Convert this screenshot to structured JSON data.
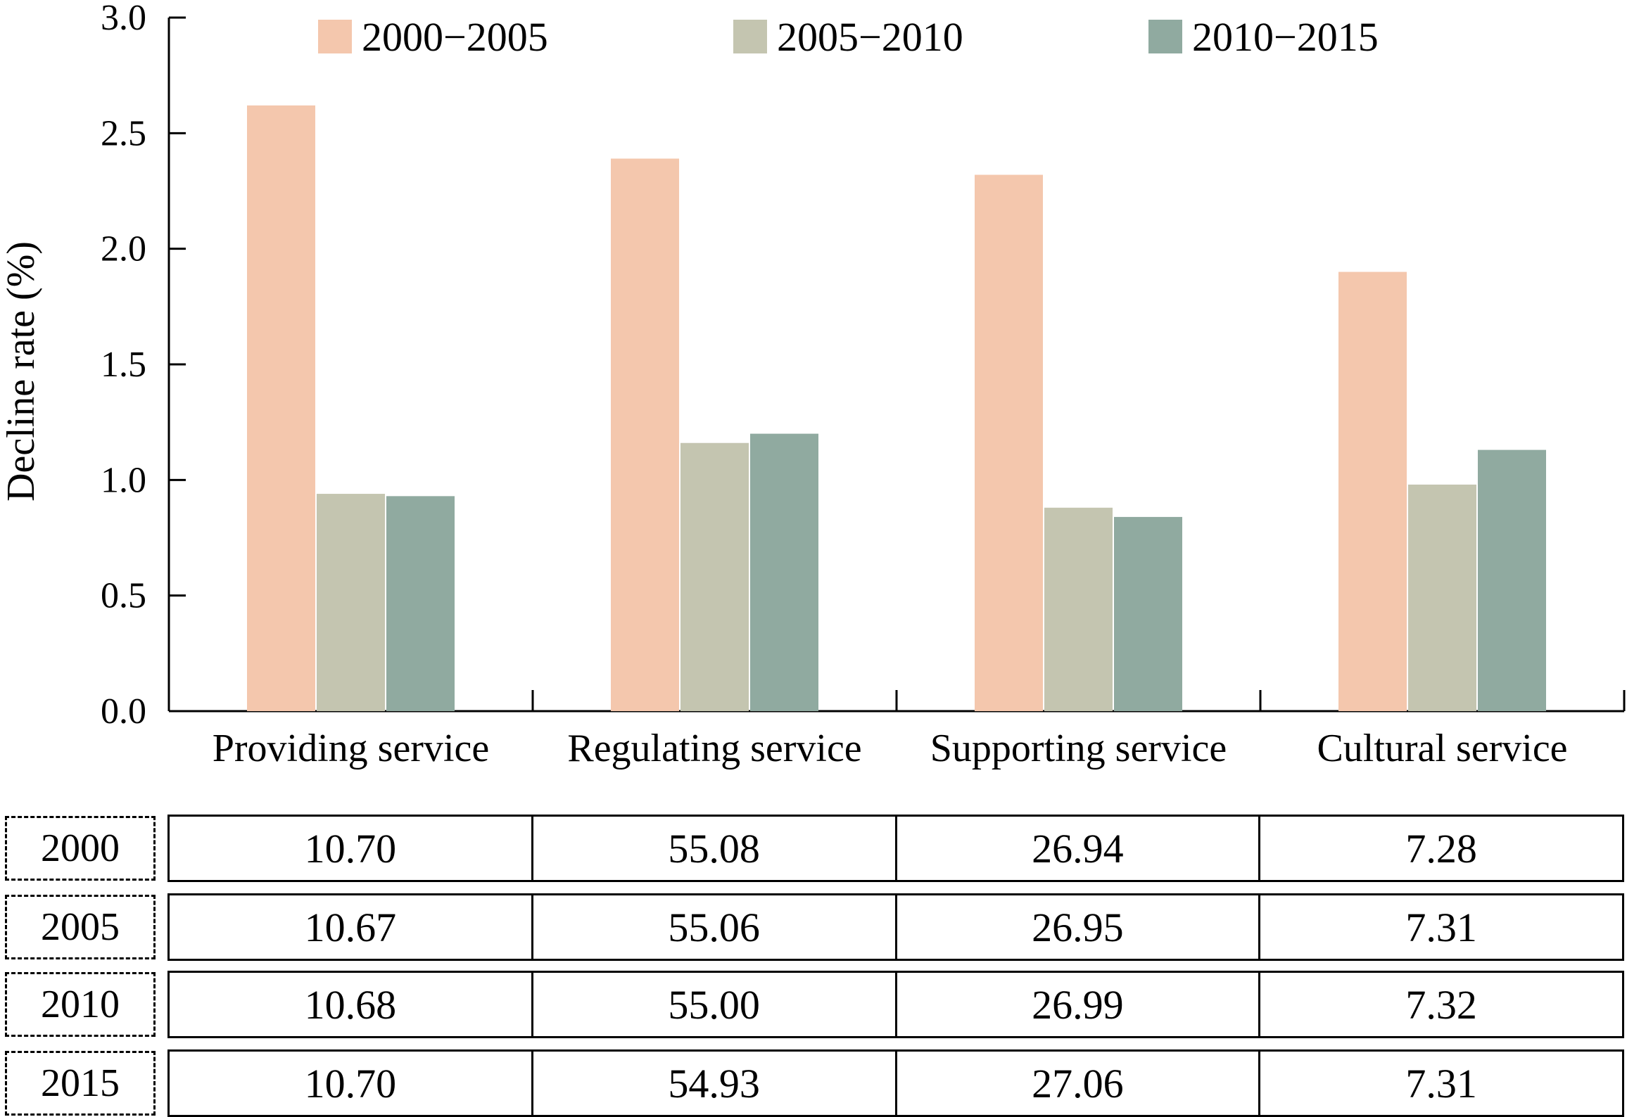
{
  "chart_data": {
    "type": "bar",
    "ylabel": "Decline rate (%)",
    "xlabel": "",
    "ylim": [
      0,
      3.0
    ],
    "yticks": [
      "0.0",
      "0.5",
      "1.0",
      "1.5",
      "2.0",
      "2.5",
      "3.0"
    ],
    "categories": [
      "Providing service",
      "Regulating service",
      "Supporting service",
      "Cultural service"
    ],
    "legend_position": "top",
    "series": [
      {
        "name": "2000−2005",
        "color": "#f4c7ad",
        "values": [
          2.62,
          2.39,
          2.32,
          1.9
        ]
      },
      {
        "name": "2005−2010",
        "color": "#c4c5b0",
        "values": [
          0.94,
          1.16,
          0.88,
          0.98
        ]
      },
      {
        "name": "2010−2015",
        "color": "#90aaa0",
        "values": [
          0.93,
          1.2,
          0.84,
          1.13
        ]
      }
    ]
  },
  "table": {
    "rows": [
      {
        "year": "2000",
        "values": [
          "10.70",
          "55.08",
          "26.94",
          "7.28"
        ]
      },
      {
        "year": "2005",
        "values": [
          "10.67",
          "55.06",
          "26.95",
          "7.31"
        ]
      },
      {
        "year": "2010",
        "values": [
          "10.68",
          "55.00",
          "26.99",
          "7.32"
        ]
      },
      {
        "year": "2015",
        "values": [
          "10.70",
          "54.93",
          "27.06",
          "7.31"
        ]
      }
    ]
  }
}
